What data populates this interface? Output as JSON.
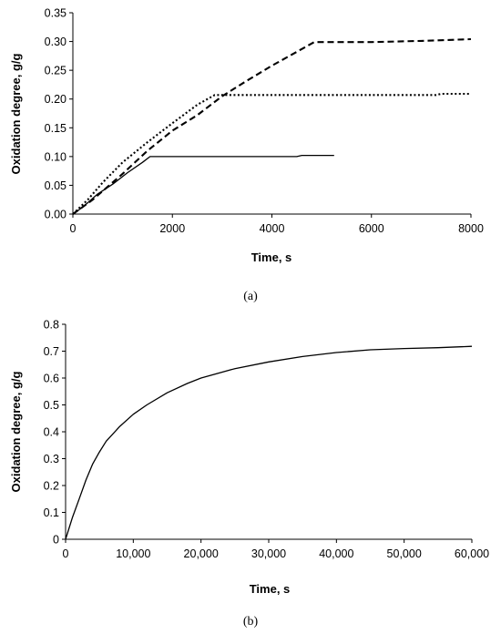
{
  "chart_data": [
    {
      "type": "line",
      "caption": "(a)",
      "xlabel": "Time, s",
      "ylabel": "Oxidation degree, g/g",
      "xlim": [
        0,
        8000
      ],
      "ylim": [
        0,
        0.35
      ],
      "x_ticks": [
        "0",
        "2000",
        "4000",
        "6000",
        "8000"
      ],
      "y_ticks": [
        "0.00",
        "0.05",
        "0.10",
        "0.15",
        "0.20",
        "0.25",
        "0.30",
        "0.35"
      ],
      "grid": false,
      "series": [
        {
          "style": "solid",
          "color": "#000000",
          "points": [
            [
              0,
              0
            ],
            [
              200,
              0.012
            ],
            [
              500,
              0.035
            ],
            [
              800,
              0.052
            ],
            [
              1100,
              0.072
            ],
            [
              1400,
              0.09
            ],
            [
              1550,
              0.1
            ],
            [
              2500,
              0.1
            ],
            [
              3500,
              0.1
            ],
            [
              4500,
              0.1
            ],
            [
              4600,
              0.102
            ],
            [
              5250,
              0.102
            ]
          ]
        },
        {
          "style": "dotted",
          "color": "#000000",
          "points": [
            [
              0,
              0
            ],
            [
              300,
              0.025
            ],
            [
              600,
              0.055
            ],
            [
              1000,
              0.09
            ],
            [
              1500,
              0.125
            ],
            [
              2000,
              0.158
            ],
            [
              2500,
              0.19
            ],
            [
              2850,
              0.207
            ],
            [
              4000,
              0.207
            ],
            [
              5000,
              0.207
            ],
            [
              6000,
              0.207
            ],
            [
              7300,
              0.207
            ],
            [
              7400,
              0.209
            ],
            [
              8000,
              0.209
            ]
          ]
        },
        {
          "style": "dashed",
          "color": "#000000",
          "points": [
            [
              0,
              0
            ],
            [
              400,
              0.025
            ],
            [
              1000,
              0.07
            ],
            [
              1500,
              0.11
            ],
            [
              2000,
              0.145
            ],
            [
              2500,
              0.172
            ],
            [
              3000,
              0.205
            ],
            [
              3500,
              0.232
            ],
            [
              4000,
              0.258
            ],
            [
              4500,
              0.282
            ],
            [
              4850,
              0.299
            ],
            [
              6000,
              0.299
            ],
            [
              7000,
              0.301
            ],
            [
              8000,
              0.304
            ]
          ]
        }
      ]
    },
    {
      "type": "line",
      "caption": "(b)",
      "xlabel": "Time, s",
      "ylabel": "Oxidation degree, g/g",
      "xlim": [
        0,
        60000
      ],
      "ylim": [
        0,
        0.8
      ],
      "x_ticks": [
        "0",
        "10,000",
        "20,000",
        "30,000",
        "40,000",
        "50,000",
        "60,000"
      ],
      "y_ticks": [
        "0",
        "0.1",
        "0.2",
        "0.3",
        "0.4",
        "0.5",
        "0.6",
        "0.7",
        "0.8"
      ],
      "grid": false,
      "series": [
        {
          "style": "solid",
          "color": "#000000",
          "points": [
            [
              0,
              0
            ],
            [
              1000,
              0.08
            ],
            [
              2000,
              0.15
            ],
            [
              3000,
              0.22
            ],
            [
              4000,
              0.28
            ],
            [
              5000,
              0.325
            ],
            [
              6000,
              0.365
            ],
            [
              8000,
              0.42
            ],
            [
              10000,
              0.465
            ],
            [
              12000,
              0.5
            ],
            [
              15000,
              0.545
            ],
            [
              18000,
              0.58
            ],
            [
              20000,
              0.6
            ],
            [
              25000,
              0.635
            ],
            [
              30000,
              0.66
            ],
            [
              35000,
              0.68
            ],
            [
              40000,
              0.695
            ],
            [
              45000,
              0.705
            ],
            [
              50000,
              0.71
            ],
            [
              55000,
              0.713
            ],
            [
              60000,
              0.718
            ]
          ]
        }
      ]
    }
  ]
}
